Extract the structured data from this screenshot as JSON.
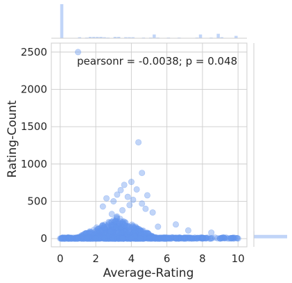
{
  "chart_data": {
    "type": "scatter",
    "subtype": "jointplot",
    "xlabel": "Average-Rating",
    "ylabel": "Rating-Count",
    "xlim": [
      -0.5,
      10.5
    ],
    "ylim": [
      -110,
      2620
    ],
    "x_ticks": [
      "0",
      "2",
      "4",
      "6",
      "8",
      "10"
    ],
    "y_ticks": [
      "0",
      "500",
      "1000",
      "1500",
      "2000",
      "2500"
    ],
    "grid": true,
    "annotation": "pearsonr = -0.0038; p = 0.048",
    "colors": {
      "points": "#6495ed",
      "hist": "#6495ed",
      "grid": "#cccccc",
      "text": "#262626"
    },
    "outliers": [
      {
        "x": 1.0,
        "y": 2500
      },
      {
        "x": 4.4,
        "y": 1290
      },
      {
        "x": 4.6,
        "y": 880
      },
      {
        "x": 4.0,
        "y": 760
      },
      {
        "x": 3.6,
        "y": 720
      },
      {
        "x": 4.3,
        "y": 660
      },
      {
        "x": 3.4,
        "y": 650
      },
      {
        "x": 3.2,
        "y": 590
      },
      {
        "x": 4.9,
        "y": 580
      },
      {
        "x": 3.8,
        "y": 560
      },
      {
        "x": 2.6,
        "y": 540
      },
      {
        "x": 4.1,
        "y": 520
      },
      {
        "x": 3.0,
        "y": 500
      },
      {
        "x": 4.6,
        "y": 470
      },
      {
        "x": 3.9,
        "y": 450
      },
      {
        "x": 2.4,
        "y": 430
      },
      {
        "x": 4.8,
        "y": 400
      },
      {
        "x": 3.5,
        "y": 380
      },
      {
        "x": 5.2,
        "y": 350
      },
      {
        "x": 2.9,
        "y": 330
      },
      {
        "x": 6.5,
        "y": 190
      },
      {
        "x": 5.5,
        "y": 160
      },
      {
        "x": 7.2,
        "y": 110
      },
      {
        "x": 8.5,
        "y": 80
      }
    ],
    "cluster": {
      "x_center": 3.2,
      "x_spread": 1.3,
      "y_max": 300,
      "count": 700
    },
    "x_marginal_hist": {
      "bin_edges_from": 0,
      "bin_edges_to": 10,
      "bins": 50,
      "counts": [
        100,
        1,
        1,
        1,
        1,
        3,
        1,
        2,
        4,
        4,
        4,
        4,
        3,
        2,
        1,
        4,
        4,
        1,
        3,
        3,
        3,
        1,
        1,
        2,
        1,
        2,
        11,
        2,
        1,
        1,
        2,
        1,
        1,
        2,
        1,
        1,
        1,
        1,
        2,
        11,
        1,
        1,
        2,
        1,
        13,
        3,
        1,
        1,
        1,
        7
      ]
    },
    "y_marginal_hist": {
      "bin_edges_from": 0,
      "bin_edges_to": 2500,
      "bins": 50,
      "counts": [
        100,
        1.5,
        0.6,
        0.2,
        0.1,
        0.05,
        0.03,
        0.02,
        0.01,
        0.01,
        0,
        0,
        0,
        0,
        0,
        0,
        0,
        0,
        0,
        0,
        0,
        0,
        0,
        0,
        0,
        0,
        0,
        0,
        0,
        0,
        0,
        0,
        0,
        0,
        0,
        0,
        0,
        0,
        0,
        0,
        0,
        0,
        0,
        0,
        0,
        0,
        0,
        0,
        0,
        0
      ]
    }
  }
}
